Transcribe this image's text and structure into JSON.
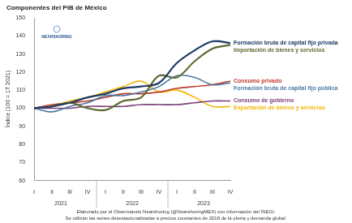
{
  "chart_data": {
    "type": "line",
    "title": "Componentes del PIB de México",
    "y_label": "Índice (100 = 1T 2021)",
    "logo_text": "NEARSHORING",
    "categories": [
      "I",
      "II",
      "III",
      "IV",
      "I",
      "II",
      "III",
      "IV",
      "I",
      "II",
      "III",
      "IV"
    ],
    "x_group_labels": [
      "2021",
      "2022",
      "2023"
    ],
    "ylim": [
      60,
      150
    ],
    "yticks": [
      60,
      70,
      80,
      90,
      100,
      110,
      120,
      130,
      140,
      150
    ],
    "grid": false,
    "series": [
      {
        "name": "Formación bruta de capital fijo privada",
        "color": "#1f3864",
        "values": [
          100,
          101,
          103,
          106,
          108,
          111,
          112,
          114,
          125,
          132,
          137,
          136
        ]
      },
      {
        "name": "Importación de bienes y servicios",
        "color": "#5a6a2e",
        "values": [
          100,
          101,
          103,
          100,
          99,
          104,
          106,
          118,
          117,
          126,
          133,
          135
        ]
      },
      {
        "name": "Formación bruta de capital fijo pública",
        "color": "#4a7aa7",
        "values": [
          100,
          98,
          101,
          103,
          107,
          107,
          109,
          112,
          118,
          117,
          113,
          114
        ]
      },
      {
        "name": "Consumo privado",
        "color": "#c0392b",
        "values": [
          100,
          102,
          103,
          104,
          106,
          108,
          108,
          109,
          111,
          112,
          113,
          115
        ]
      },
      {
        "name": "Consumo de gobierno",
        "color": "#7b3f7b",
        "values": [
          100,
          100,
          100,
          101,
          101,
          101,
          102,
          102,
          102,
          103,
          104,
          104
        ]
      },
      {
        "name": "Exportación de bienes y servicios",
        "color": "#f2b705",
        "values": [
          100,
          101,
          104,
          106,
          109,
          112,
          115,
          109,
          110,
          106,
          101,
          101
        ]
      }
    ],
    "notes": [
      "Elaborado por el Observatorio Nearshoring (@NearshoringMEX) con información del INEGI.",
      "Se utilizan las series desestacionalizadas a precios constantes de 2018 de la oferta y demanda global."
    ]
  }
}
